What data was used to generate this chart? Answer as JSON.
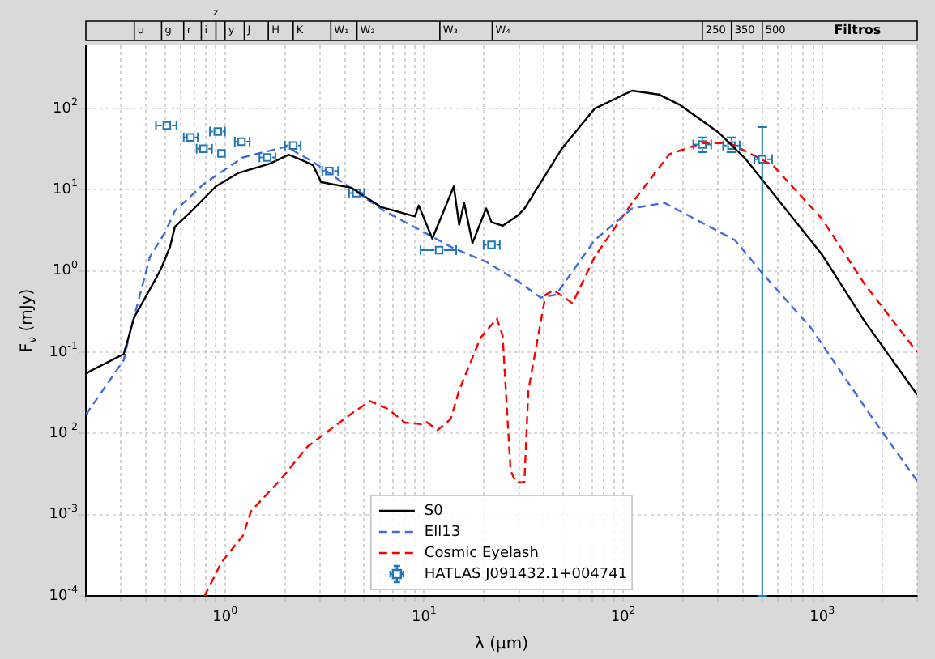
{
  "chart_data": {
    "type": "line",
    "xlabel": "λ (μm)",
    "ylabel": "F$_{ν}$ (mJy)",
    "log": "xy",
    "grid": true,
    "legend": "bottom",
    "xlim": [
      0.2,
      3000
    ],
    "ylim": [
      0.0001,
      600
    ],
    "xticks": [
      {
        "value": 0.2,
        "label": null
      },
      {
        "value": 0.3,
        "label": null
      },
      {
        "value": 0.4,
        "label": null
      },
      {
        "value": 0.5,
        "label": null
      },
      {
        "value": 0.6,
        "label": null
      },
      {
        "value": 0.7,
        "label": null
      },
      {
        "value": 0.8,
        "label": null
      },
      {
        "value": 0.9,
        "label": null
      },
      {
        "value": 1,
        "label": "10$^{0}$"
      },
      {
        "value": 2,
        "label": null
      },
      {
        "value": 3,
        "label": null
      },
      {
        "value": 4,
        "label": null
      },
      {
        "value": 5,
        "label": null
      },
      {
        "value": 6,
        "label": null
      },
      {
        "value": 7,
        "label": null
      },
      {
        "value": 8,
        "label": null
      },
      {
        "value": 9,
        "label": null
      },
      {
        "value": 10,
        "label": "10$^{1}$"
      },
      {
        "value": 20,
        "label": null
      },
      {
        "value": 30,
        "label": null
      },
      {
        "value": 40,
        "label": null
      },
      {
        "value": 50,
        "label": null
      },
      {
        "value": 60,
        "label": null
      },
      {
        "value": 70,
        "label": null
      },
      {
        "value": 80,
        "label": null
      },
      {
        "value": 90,
        "label": null
      },
      {
        "value": 100,
        "label": "10$^{2}$"
      },
      {
        "value": 200,
        "label": null
      },
      {
        "value": 300,
        "label": null
      },
      {
        "value": 400,
        "label": null
      },
      {
        "value": 500,
        "label": null
      },
      {
        "value": 600,
        "label": null
      },
      {
        "value": 700,
        "label": null
      },
      {
        "value": 800,
        "label": null
      },
      {
        "value": 900,
        "label": null
      },
      {
        "value": 1000,
        "label": "10$^{3}$"
      },
      {
        "value": 2000,
        "label": null
      },
      {
        "value": 3000,
        "label": null
      }
    ],
    "yticks": [
      {
        "value": 0.0001,
        "label": "10$^{-4}$"
      },
      {
        "value": 0.001,
        "label": "10$^{-3}$"
      },
      {
        "value": 0.01,
        "label": "10$^{-2}$"
      },
      {
        "value": 0.1,
        "label": "10$^{-1}$"
      },
      {
        "value": 1,
        "label": "10$^{0}$"
      },
      {
        "value": 10,
        "label": "10$^{1}$"
      },
      {
        "value": 100,
        "label": "10$^{2}$"
      }
    ],
    "annotations": [
      "Filtros"
    ],
    "ref_lines": [
      {
        "axis": "x",
        "value": 0.35,
        "label": "u"
      },
      {
        "axis": "x",
        "value": 0.48,
        "label": "g"
      },
      {
        "axis": "x",
        "value": 0.62,
        "label": "r"
      },
      {
        "axis": "x",
        "value": 0.76,
        "label": "i"
      },
      {
        "axis": "x",
        "value": 0.9,
        "label": "z"
      },
      {
        "axis": "x",
        "value": 1.0,
        "label": "y"
      },
      {
        "axis": "x",
        "value": 1.25,
        "label": "J"
      },
      {
        "axis": "x",
        "value": 1.65,
        "label": "H"
      },
      {
        "axis": "x",
        "value": 2.2,
        "label": "K"
      },
      {
        "axis": "x",
        "value": 3.4,
        "label": "W₁"
      },
      {
        "axis": "x",
        "value": 4.6,
        "label": "W₂"
      },
      {
        "axis": "x",
        "value": 12,
        "label": "W₃"
      },
      {
        "axis": "x",
        "value": 22,
        "label": "W₄"
      },
      {
        "axis": "x",
        "value": 250,
        "label": "250"
      },
      {
        "axis": "x",
        "value": 350,
        "label": "350"
      },
      {
        "axis": "x",
        "value": 500,
        "label": "500"
      }
    ],
    "series": [
      {
        "name": "S0",
        "color": "#000000",
        "line_style": "solid",
        "x": [
          0.2,
          0.31,
          0.35,
          0.45,
          0.48,
          0.53,
          0.56,
          0.66,
          0.9,
          1.16,
          1.68,
          2.09,
          2.45,
          2.77,
          3.04,
          4.3,
          6.1,
          9.0,
          9.4,
          11.0,
          14.1,
          15.0,
          15.9,
          17.5,
          20.5,
          21.8,
          24.8,
          29.8,
          32,
          49.2,
          72,
          111,
          151,
          194,
          301,
          412,
          996,
          1633,
          3000
        ],
        "values": [
          0.055,
          0.095,
          0.27,
          0.81,
          1.1,
          2.0,
          3.5,
          5.1,
          11,
          16,
          21,
          27,
          23,
          20,
          12.4,
          10.6,
          6.1,
          4.7,
          6.4,
          2.5,
          11,
          3.7,
          6.9,
          2.2,
          5.9,
          4.0,
          3.6,
          4.9,
          5.9,
          32,
          100,
          166,
          149,
          110,
          51,
          24,
          1.6,
          0.24,
          0.03
        ]
      },
      {
        "name": "Ell13",
        "color": "#4169e1",
        "line_style": "dashed",
        "x": [
          0.2,
          0.31,
          0.33,
          0.42,
          0.5,
          0.56,
          0.79,
          1.23,
          2.03,
          2.77,
          4.57,
          6.3,
          14.1,
          20.5,
          29.8,
          38.5,
          46,
          72,
          111,
          161,
          364,
          500,
          877,
          1740,
          3000
        ],
        "values": [
          0.017,
          0.08,
          0.16,
          1.5,
          3.0,
          5.5,
          12,
          25,
          34,
          22,
          9.4,
          5.5,
          1.9,
          1.3,
          0.74,
          0.47,
          0.51,
          2.4,
          5.9,
          6.9,
          2.4,
          0.94,
          0.2,
          0.017,
          0.0026
        ]
      },
      {
        "name": "Cosmic Eyelash",
        "color": "#ff0000",
        "line_style": "dashed",
        "x": [
          0.79,
          0.96,
          1.23,
          1.35,
          1.9,
          2.6,
          4.3,
          5.35,
          6.6,
          8.0,
          9.7,
          10.3,
          11.7,
          13.6,
          15,
          19.2,
          23.2,
          24.8,
          27.2,
          28.9,
          31.9,
          33.4,
          40.8,
          44.8,
          55.7,
          72,
          111,
          171,
          250,
          343,
          565,
          996,
          1633,
          3000
        ],
        "values": [
          0.0001,
          0.00026,
          0.00055,
          0.0011,
          0.0027,
          0.0069,
          0.0174,
          0.025,
          0.02,
          0.0136,
          0.013,
          0.0138,
          0.011,
          0.015,
          0.034,
          0.15,
          0.26,
          0.16,
          0.0035,
          0.0025,
          0.0025,
          0.034,
          0.51,
          0.58,
          0.4,
          1.5,
          6.9,
          27.5,
          37.5,
          37.5,
          20,
          4.4,
          0.69,
          0.1
        ]
      },
      {
        "name": "HATLAS J091432.1+004741",
        "type": "scatter",
        "marker": "square",
        "color": "#1f77b4",
        "x": [
          0.51,
          0.67,
          0.78,
          0.92,
          0.96,
          1.21,
          1.63,
          2.2,
          3.34,
          4.57,
          11.9,
          21.8,
          250,
          350,
          500
        ],
        "values": [
          62,
          44,
          32,
          52,
          28,
          39,
          25,
          35,
          17,
          9.1,
          1.8,
          2.1,
          36,
          35,
          23.7
        ],
        "xerrors": [
          [
            0.45,
            0.57
          ],
          [
            0.62,
            0.73
          ],
          [
            0.72,
            0.86
          ],
          [
            0.84,
            1.0
          ],
          null,
          [
            1.12,
            1.33
          ],
          [
            1.49,
            1.79
          ],
          [
            2.0,
            2.4
          ],
          [
            3.08,
            3.7
          ],
          [
            4.2,
            5.0
          ],
          [
            9.6,
            14.5
          ],
          [
            19.9,
            24
          ],
          [
            225,
            277
          ],
          [
            318,
            385
          ],
          [
            457,
            560
          ]
        ],
        "errors": [
          null,
          null,
          null,
          null,
          null,
          null,
          null,
          null,
          null,
          null,
          null,
          null,
          [
            29,
            44
          ],
          [
            29,
            44
          ],
          [
            0.0001,
            59
          ]
        ]
      }
    ]
  }
}
